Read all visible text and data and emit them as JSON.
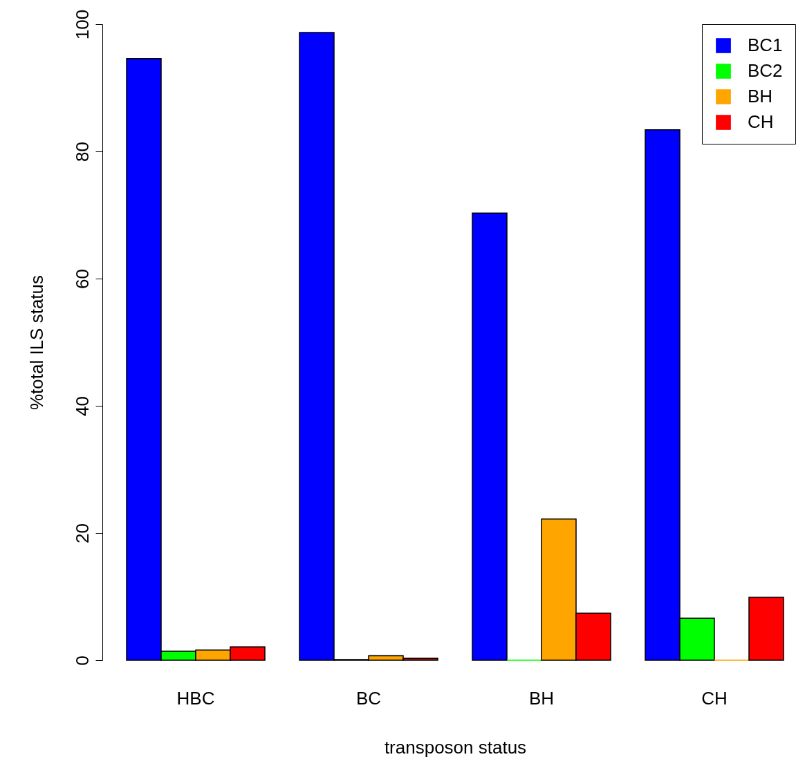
{
  "chart_data": {
    "type": "bar",
    "xlabel": "transposon status",
    "ylabel": "%total ILS status",
    "categories": [
      "HBC",
      "BC",
      "BH",
      "CH"
    ],
    "series": [
      {
        "name": "BC1",
        "color": "#0000ff",
        "values": [
          94.6,
          98.7,
          70.3,
          83.4
        ]
      },
      {
        "name": "BC2",
        "color": "#00ff00",
        "values": [
          1.4,
          0.1,
          0,
          6.6
        ]
      },
      {
        "name": "BH",
        "color": "#ffa500",
        "values": [
          1.6,
          0.7,
          22.2,
          0
        ]
      },
      {
        "name": "CH",
        "color": "#ff0000",
        "values": [
          2.1,
          0.3,
          7.4,
          9.9
        ]
      }
    ],
    "ylim": [
      0,
      100
    ],
    "yticks": [
      0,
      20,
      40,
      60,
      80,
      100
    ],
    "grid": false,
    "legend": "top right"
  }
}
